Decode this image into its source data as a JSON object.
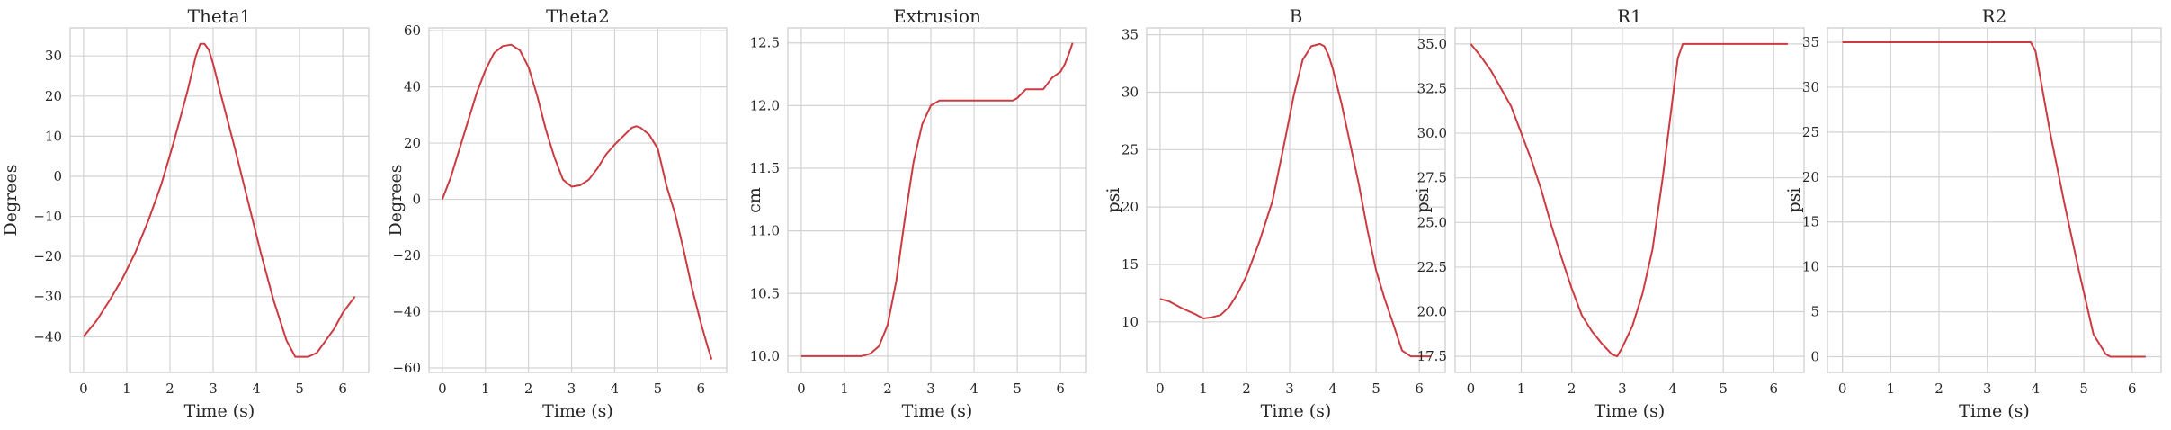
{
  "line_color": "#cc3b41",
  "chart_data": [
    {
      "type": "line",
      "title": "Theta1",
      "xlabel": "Time (s)",
      "ylabel": "Degrees",
      "xlim": [
        -0.31,
        6.6
      ],
      "ylim": [
        -48.9,
        37
      ],
      "xticks": [
        "0",
        "1",
        "2",
        "3",
        "4",
        "5",
        "6"
      ],
      "yticks": [
        "30",
        "20",
        "10",
        "0",
        "−10",
        "−20",
        "−30",
        "−40"
      ],
      "ytick_values": [
        30,
        20,
        10,
        0,
        -10,
        -20,
        -30,
        -40
      ],
      "grid": true,
      "series": [
        {
          "x": [
            0,
            0.3,
            0.6,
            0.9,
            1.2,
            1.5,
            1.8,
            2.1,
            2.4,
            2.6,
            2.7,
            2.8,
            2.9,
            3.0,
            3.2,
            3.5,
            3.8,
            4.1,
            4.4,
            4.7,
            4.9,
            5.0,
            5.2,
            5.4,
            5.6,
            5.8,
            6.0,
            6.28
          ],
          "y": [
            -40,
            -36,
            -31,
            -25.5,
            -19,
            -11,
            -2,
            9,
            21,
            30,
            33,
            33,
            31.5,
            28,
            19.5,
            7,
            -6,
            -19,
            -31,
            -41,
            -45,
            -45,
            -45,
            -44,
            -41,
            -38,
            -34,
            -30
          ]
        }
      ]
    },
    {
      "type": "line",
      "title": "Theta2",
      "xlabel": "Time (s)",
      "ylabel": "Degrees",
      "xlim": [
        -0.31,
        6.6
      ],
      "ylim": [
        -61.6,
        61
      ],
      "xticks": [
        "0",
        "1",
        "2",
        "3",
        "4",
        "5",
        "6"
      ],
      "yticks": [
        "60",
        "40",
        "20",
        "0",
        "−20",
        "−40",
        "−60"
      ],
      "ytick_values": [
        60,
        40,
        20,
        0,
        -20,
        -40,
        -60
      ],
      "grid": true,
      "series": [
        {
          "x": [
            0,
            0.2,
            0.4,
            0.6,
            0.8,
            1.0,
            1.2,
            1.4,
            1.6,
            1.8,
            2.0,
            2.2,
            2.4,
            2.6,
            2.8,
            3.0,
            3.2,
            3.4,
            3.6,
            3.8,
            4.0,
            4.2,
            4.4,
            4.5,
            4.6,
            4.8,
            5.0,
            5.2,
            5.4,
            5.6,
            5.8,
            6.0,
            6.15,
            6.25
          ],
          "y": [
            0,
            8,
            18,
            28,
            38,
            46,
            52,
            54.5,
            55,
            53,
            47,
            37,
            25,
            15,
            7,
            4.5,
            5,
            7,
            11,
            16,
            19.5,
            22.5,
            25.5,
            26,
            25.5,
            23,
            18,
            5,
            -5,
            -18,
            -32,
            -44,
            -52,
            -57
          ]
        }
      ]
    },
    {
      "type": "line",
      "title": "Extrusion",
      "xlabel": "Time (s)",
      "ylabel": "cm",
      "xlim": [
        -0.31,
        6.6
      ],
      "ylim": [
        9.87,
        12.62
      ],
      "xticks": [
        "0",
        "1",
        "2",
        "3",
        "4",
        "5",
        "6"
      ],
      "yticks": [
        "12.5",
        "12.0",
        "11.5",
        "11.0",
        "10.5",
        "10.0"
      ],
      "ytick_values": [
        12.5,
        12.0,
        11.5,
        11.0,
        10.5,
        10.0
      ],
      "grid": true,
      "series": [
        {
          "x": [
            0,
            0.5,
            1.0,
            1.4,
            1.6,
            1.8,
            2.0,
            2.2,
            2.4,
            2.6,
            2.8,
            3.0,
            3.2,
            3.4,
            3.6,
            4.0,
            4.5,
            4.9,
            5.0,
            5.2,
            5.5,
            5.6,
            5.8,
            6.0,
            6.1,
            6.2,
            6.28
          ],
          "y": [
            10,
            10,
            10,
            10,
            10.02,
            10.08,
            10.25,
            10.6,
            11.1,
            11.55,
            11.85,
            12.0,
            12.04,
            12.04,
            12.04,
            12.04,
            12.04,
            12.04,
            12.06,
            12.13,
            12.13,
            12.13,
            12.22,
            12.27,
            12.33,
            12.42,
            12.5
          ]
        }
      ]
    },
    {
      "type": "line",
      "title": "B",
      "xlabel": "Time (s)",
      "ylabel": "psi",
      "xlim": [
        -0.31,
        6.6
      ],
      "ylim": [
        5.6,
        35.6
      ],
      "xticks": [
        "0",
        "1",
        "2",
        "3",
        "4",
        "5",
        "6"
      ],
      "yticks": [
        "35",
        "30",
        "25",
        "20",
        "15",
        "10"
      ],
      "ytick_values": [
        35,
        30,
        25,
        20,
        15,
        10
      ],
      "grid": true,
      "series": [
        {
          "x": [
            0,
            0.2,
            0.5,
            0.8,
            1.0,
            1.2,
            1.4,
            1.6,
            1.8,
            2.0,
            2.3,
            2.6,
            2.9,
            3.1,
            3.3,
            3.5,
            3.7,
            3.8,
            3.9,
            4.0,
            4.2,
            4.4,
            4.6,
            4.8,
            5.0,
            5.2,
            5.4,
            5.6,
            5.8,
            6.0,
            6.28
          ],
          "y": [
            12,
            11.8,
            11.2,
            10.7,
            10.3,
            10.4,
            10.6,
            11.3,
            12.5,
            14,
            17,
            20.5,
            26,
            29.8,
            32.8,
            34,
            34.2,
            34,
            33.2,
            32,
            29,
            25.5,
            22,
            18,
            14.5,
            12,
            9.8,
            7.5,
            7,
            7,
            7
          ]
        }
      ]
    },
    {
      "type": "line",
      "title": "R1",
      "xlabel": "Time (s)",
      "ylabel": "psi",
      "xlim": [
        -0.31,
        6.6
      ],
      "ylim": [
        16.6,
        35.9
      ],
      "xticks": [
        "0",
        "1",
        "2",
        "3",
        "4",
        "5",
        "6"
      ],
      "yticks": [
        "35.0",
        "32.5",
        "30.0",
        "27.5",
        "25.0",
        "22.5",
        "20.0",
        "17.5"
      ],
      "ytick_values": [
        35,
        32.5,
        30,
        27.5,
        25,
        22.5,
        20,
        17.5
      ],
      "grid": true,
      "series": [
        {
          "x": [
            0,
            0.2,
            0.4,
            0.6,
            0.8,
            1.0,
            1.2,
            1.4,
            1.6,
            1.8,
            2.0,
            2.2,
            2.4,
            2.6,
            2.8,
            2.9,
            3.0,
            3.2,
            3.4,
            3.6,
            3.8,
            4.0,
            4.1,
            4.2,
            4.5,
            5.0,
            5.5,
            6.0,
            6.28
          ],
          "y": [
            35,
            34.3,
            33.5,
            32.5,
            31.5,
            30,
            28.5,
            26.8,
            24.8,
            23,
            21.3,
            19.8,
            18.9,
            18.2,
            17.6,
            17.5,
            18,
            19.2,
            21,
            23.5,
            27.5,
            32,
            34.2,
            35,
            35,
            35,
            35,
            35,
            35
          ]
        }
      ]
    },
    {
      "type": "line",
      "title": "R2",
      "xlabel": "Time (s)",
      "ylabel": "psi",
      "xlim": [
        -0.31,
        6.6
      ],
      "ylim": [
        -1.75,
        36.6
      ],
      "xticks": [
        "0",
        "1",
        "2",
        "3",
        "4",
        "5",
        "6"
      ],
      "yticks": [
        "35",
        "30",
        "25",
        "20",
        "15",
        "10",
        "5",
        "0"
      ],
      "ytick_values": [
        35,
        30,
        25,
        20,
        15,
        10,
        5,
        0
      ],
      "grid": true,
      "series": [
        {
          "x": [
            0,
            1,
            2,
            3,
            3.9,
            4.0,
            4.1,
            4.3,
            4.6,
            4.9,
            5.2,
            5.45,
            5.55,
            5.7,
            5.9,
            6.28
          ],
          "y": [
            35,
            35,
            35,
            35,
            35,
            34,
            31,
            25,
            17,
            9.5,
            2.5,
            0.3,
            0,
            0,
            0,
            0
          ]
        }
      ]
    }
  ]
}
